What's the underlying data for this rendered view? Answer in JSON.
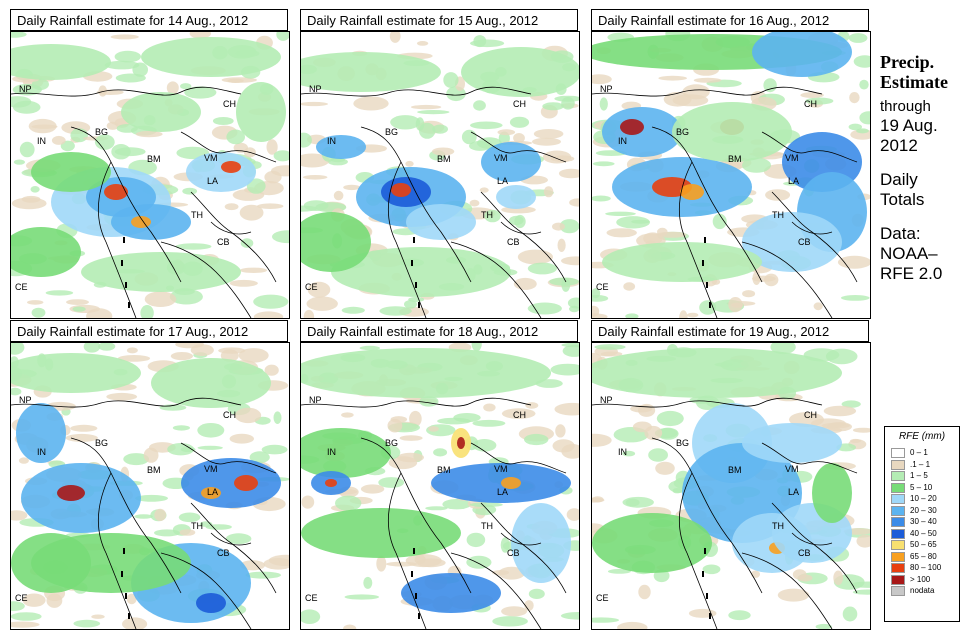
{
  "panels": [
    {
      "title": "Daily Rainfall estimate for  14 Aug., 2012"
    },
    {
      "title": "Daily Rainfall estimate for  15 Aug., 2012"
    },
    {
      "title": "Daily Rainfall estimate for  16 Aug., 2012"
    },
    {
      "title": "Daily Rainfall estimate for  17 Aug., 2012"
    },
    {
      "title": "Daily Rainfall estimate for  18 Aug., 2012"
    },
    {
      "title": "Daily Rainfall estimate for  19 Aug., 2012"
    }
  ],
  "country_labels": [
    "NP",
    "CH",
    "IN",
    "BG",
    "BM",
    "VM",
    "LA",
    "TH",
    "CB",
    "CE"
  ],
  "side": {
    "title_line1": "Precip.",
    "title_line2": "Estimate",
    "through": "through",
    "date_line1": "19 Aug.",
    "date_line2": "2012",
    "daily_line1": "Daily",
    "daily_line2": "Totals",
    "data_line1": "Data:",
    "data_line2": "NOAA–",
    "data_line3": "RFE 2.0"
  },
  "legend": {
    "title": "RFE (mm)",
    "items": [
      {
        "label": "0 – 1",
        "color": "#ffffff"
      },
      {
        "label": ".1 – 1",
        "color": "#e8d8c0"
      },
      {
        "label": "1 – 5",
        "color": "#b4ecb4"
      },
      {
        "label": "5 – 10",
        "color": "#78dc78"
      },
      {
        "label": "10 – 20",
        "color": "#a0d8f8"
      },
      {
        "label": "20 – 30",
        "color": "#5cb4f0"
      },
      {
        "label": "30 – 40",
        "color": "#3c8ce8"
      },
      {
        "label": "40 – 50",
        "color": "#1c5cd8"
      },
      {
        "label": "50 – 65",
        "color": "#f8e070"
      },
      {
        "label": "65 – 80",
        "color": "#f8a020"
      },
      {
        "label": "80 – 100",
        "color": "#e84010"
      },
      {
        "label": "> 100",
        "color": "#a81818"
      },
      {
        "label": "nodata",
        "color": "#c8c8c8"
      }
    ]
  }
}
